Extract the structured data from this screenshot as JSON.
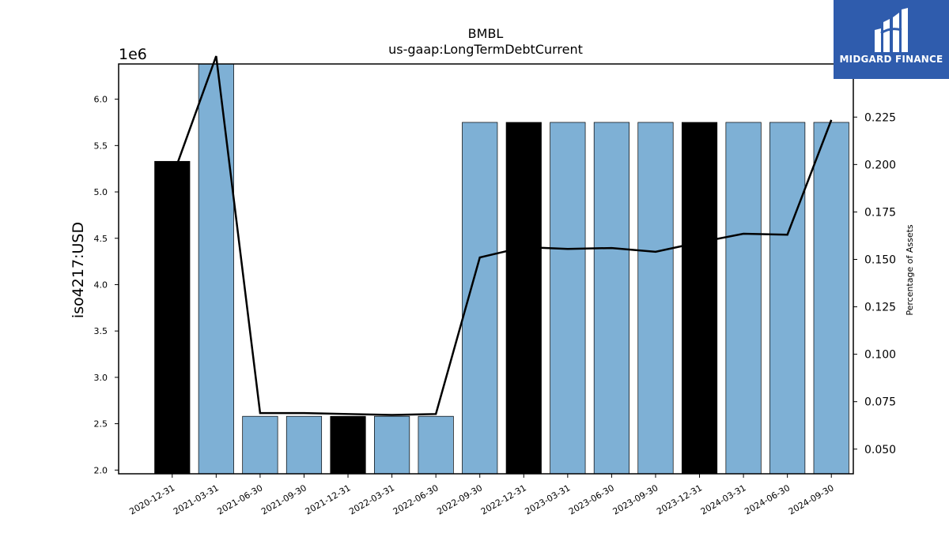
{
  "chart_data": {
    "type": "bar",
    "title": "BMBL",
    "subtitle": "us-gaap:LongTermDebtCurrent",
    "ylabel": "iso4217:USD",
    "y_offset_label": "1e6",
    "y2label": "Percentage of Assets",
    "ylim": [
      1.96,
      6.38
    ],
    "y2lim": [
      0.037,
      0.253
    ],
    "y_ticks": [
      "2.0",
      "2.5",
      "3.0",
      "3.5",
      "4.0",
      "4.5",
      "5.0",
      "5.5",
      "6.0"
    ],
    "y2_ticks": [
      "0.050",
      "0.075",
      "0.100",
      "0.125",
      "0.150",
      "0.175",
      "0.200",
      "0.225"
    ],
    "categories": [
      "2020-12-31",
      "2021-03-31",
      "2021-06-30",
      "2021-09-30",
      "2021-12-31",
      "2022-03-31",
      "2022-06-30",
      "2022-09-30",
      "2022-12-31",
      "2023-03-31",
      "2023-06-30",
      "2023-09-30",
      "2023-12-31",
      "2024-03-31",
      "2024-06-30",
      "2024-09-30"
    ],
    "series": [
      {
        "kind": "bar",
        "values": [
          5.33,
          6.38,
          2.58,
          2.58,
          2.58,
          2.58,
          2.58,
          5.75,
          5.75,
          5.75,
          5.75,
          5.75,
          5.75,
          5.75,
          5.75,
          5.75
        ],
        "colors": [
          "#000000",
          "#7eb0d5",
          "#7eb0d5",
          "#7eb0d5",
          "#000000",
          "#7eb0d5",
          "#7eb0d5",
          "#7eb0d5",
          "#000000",
          "#7eb0d5",
          "#7eb0d5",
          "#7eb0d5",
          "#000000",
          "#7eb0d5",
          "#7eb0d5",
          "#7eb0d5"
        ]
      },
      {
        "kind": "line",
        "axis": "right",
        "values": [
          0.193,
          0.258,
          0.069,
          0.069,
          0.0685,
          0.068,
          0.0685,
          0.151,
          0.1565,
          0.1555,
          0.156,
          0.154,
          0.159,
          0.1635,
          0.163,
          0.2235
        ],
        "color": "#000000"
      }
    ],
    "grid": false
  },
  "logo": {
    "text": "MIDGARD FINANCE",
    "icon": "midgard-logo-icon",
    "background": "#2f5cad"
  }
}
